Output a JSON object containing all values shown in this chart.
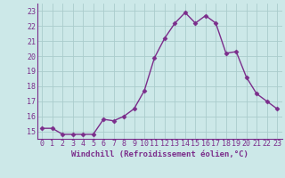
{
  "x": [
    0,
    1,
    2,
    3,
    4,
    5,
    6,
    7,
    8,
    9,
    10,
    11,
    12,
    13,
    14,
    15,
    16,
    17,
    18,
    19,
    20,
    21,
    22,
    23
  ],
  "y": [
    15.2,
    15.2,
    14.8,
    14.8,
    14.8,
    14.8,
    15.8,
    15.7,
    16.0,
    16.5,
    17.7,
    19.9,
    21.2,
    22.2,
    22.9,
    22.2,
    22.7,
    22.2,
    20.2,
    20.3,
    18.6,
    17.5,
    17.0,
    16.5
  ],
  "line_color": "#7B2D8B",
  "marker": "D",
  "marker_size": 2.5,
  "bg_color": "#cce8e8",
  "grid_color": "#aacccc",
  "xlabel": "Windchill (Refroidissement éolien,°C)",
  "xlabel_fontsize": 6.5,
  "xtick_labels": [
    "0",
    "1",
    "2",
    "3",
    "4",
    "5",
    "6",
    "7",
    "8",
    "9",
    "10",
    "11",
    "12",
    "13",
    "14",
    "15",
    "16",
    "17",
    "18",
    "19",
    "20",
    "21",
    "22",
    "23"
  ],
  "ytick_labels": [
    "15",
    "16",
    "17",
    "18",
    "19",
    "20",
    "21",
    "22",
    "23"
  ],
  "ylim": [
    14.5,
    23.5
  ],
  "xlim": [
    -0.5,
    23.5
  ],
  "tick_fontsize": 6.0,
  "line_width": 1.0
}
